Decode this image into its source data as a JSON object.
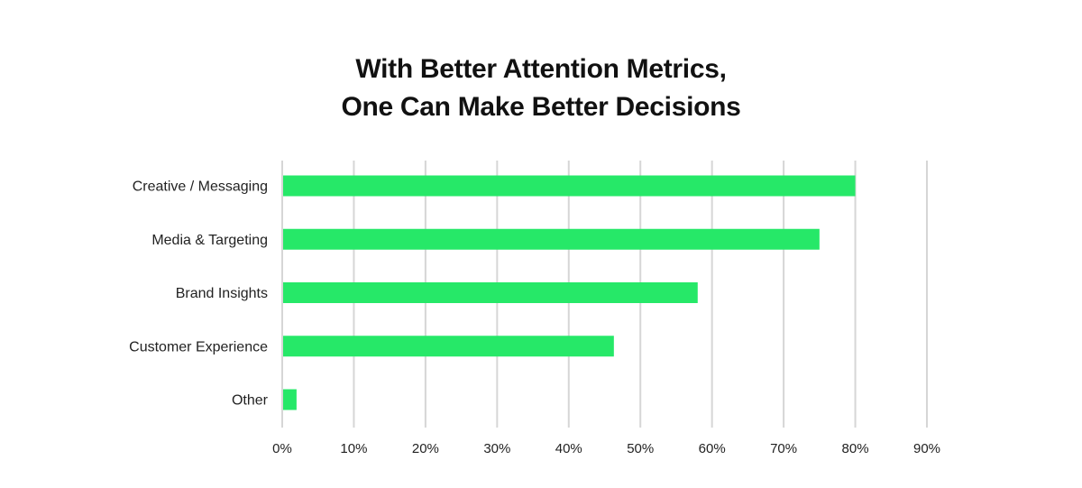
{
  "chart_data": {
    "type": "bar",
    "orientation": "horizontal",
    "title_lines": [
      "With Better Attention Metrics,",
      "One Can Make Better Decisions"
    ],
    "categories": [
      "Creative / Messaging",
      "Media & Targeting",
      "Brand Insights",
      "Customer Experience",
      "Other"
    ],
    "values": [
      80,
      75,
      58,
      46.3,
      2
    ],
    "xlim": [
      0,
      90
    ],
    "x_ticks": [
      0,
      10,
      20,
      30,
      40,
      50,
      60,
      70,
      80,
      90
    ],
    "x_tick_labels": [
      "0%",
      "10%",
      "20%",
      "30%",
      "40%",
      "50%",
      "60%",
      "70%",
      "80%",
      "90%"
    ],
    "xlabel": "",
    "ylabel": "",
    "grid": "vertical",
    "legend": "none",
    "bar_color": "#26e868",
    "grid_color": "#d6d6d6"
  }
}
